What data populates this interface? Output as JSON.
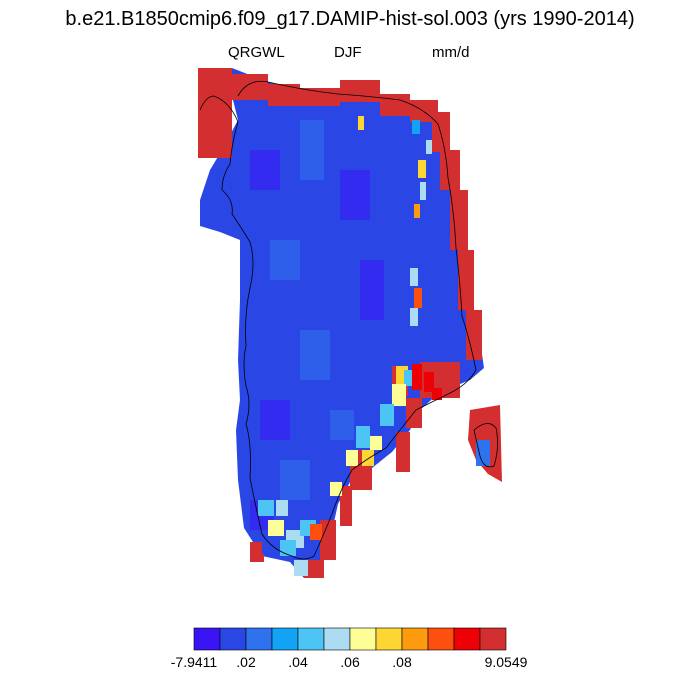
{
  "title": "b.e21.B1850cmip6.f09_g17.DAMIP-hist-sol.003 (yrs 1990-2014)",
  "subtitles": {
    "variable": "QRGWL",
    "season": "DJF",
    "units": "mm/d"
  },
  "colorbar": {
    "colors": [
      "#3a14f5",
      "#2a47e6",
      "#2f72ee",
      "#12a3f5",
      "#4cc4f4",
      "#acdcf1",
      "#fefe96",
      "#fed634",
      "#fd9a0e",
      "#fd4f0e",
      "#ee0007",
      "#d42f30"
    ],
    "labels": [
      "-7.9411",
      ".02",
      ".04",
      ".06",
      ".08",
      "9.0549"
    ],
    "label_boundaries": [
      0,
      2,
      4,
      6,
      8,
      11
    ]
  },
  "map_legend": {
    "land_color": "#2a47e6",
    "coast_color": "#d42f30"
  }
}
